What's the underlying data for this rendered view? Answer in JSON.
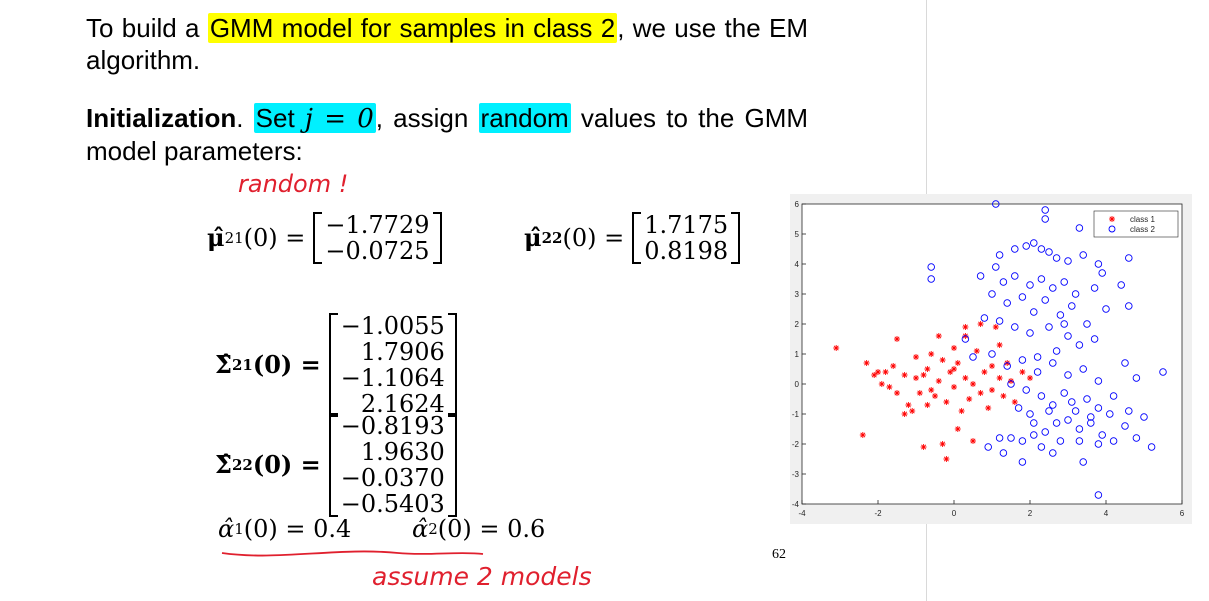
{
  "para1": {
    "before": "To build a ",
    "highlight": "GMM model for samples in class 2",
    "after": ", we use the EM algorithm."
  },
  "para2": {
    "bold": "Initialization",
    "dot": ". ",
    "set_hl": "Set ",
    "set_math": "j = 0",
    "mid": ", assign ",
    "random_hl": "random",
    "after": " values to the GMM model parameters:"
  },
  "equations": {
    "mu21": {
      "label": "μ̂",
      "sub": "21",
      "arg": "(0) =",
      "values": [
        "−1.7729",
        "−0.0725"
      ]
    },
    "mu22": {
      "label": "μ̂",
      "sub": "22",
      "arg": "(0) =",
      "values": [
        "1.7175",
        "0.8198"
      ]
    },
    "sigma21": {
      "label": "Σ̂",
      "sub": "21",
      "arg": "(0) =",
      "rows": [
        [
          "−1.0055",
          "1.7906"
        ],
        [
          "−1.1064",
          "2.1624"
        ]
      ]
    },
    "sigma22": {
      "label": "Σ̂",
      "sub": "22",
      "arg": "(0) =",
      "rows": [
        [
          "−0.8193",
          "1.9630"
        ],
        [
          "−0.0370",
          "−0.5403"
        ]
      ]
    },
    "alpha1": {
      "label": "α̂",
      "sub": "1",
      "arg": "(0) = 0.4"
    },
    "alpha2": {
      "label": "α̂",
      "sub": "2",
      "arg": "(0) = 0.6"
    }
  },
  "handwriting": {
    "random_note": "random !",
    "assume_note": "assume 2 models"
  },
  "page_number": "62",
  "colors": {
    "highlight_yellow": "#ffff00",
    "highlight_cyan": "#00f0ff",
    "handwriting_red": "#e0202e",
    "class1": "#ff0000",
    "class2": "#0000ff"
  },
  "chart_data": {
    "type": "scatter",
    "xlim": [
      -4,
      6
    ],
    "ylim": [
      -4,
      6
    ],
    "xticks": [
      -4,
      -2,
      0,
      2,
      4,
      6
    ],
    "yticks": [
      -4,
      -3,
      -2,
      -1,
      0,
      1,
      2,
      3,
      4,
      5,
      6
    ],
    "grid": false,
    "legend_position": "top-right",
    "series": [
      {
        "name": "class 1",
        "marker": "*",
        "color": "#ff0000",
        "points": [
          [
            -3.1,
            1.2
          ],
          [
            -2.4,
            -1.7
          ],
          [
            -2.3,
            0.7
          ],
          [
            -2.0,
            0.4
          ],
          [
            -2.1,
            0.3
          ],
          [
            -1.9,
            0
          ],
          [
            -1.8,
            0.4
          ],
          [
            -1.7,
            -0.1
          ],
          [
            -1.6,
            0.6
          ],
          [
            -1.5,
            1.5
          ],
          [
            -1.5,
            -0.3
          ],
          [
            -1.3,
            -1.0
          ],
          [
            -1.2,
            -0.7
          ],
          [
            -1.1,
            -0.9
          ],
          [
            -1.0,
            0.2
          ],
          [
            -1.0,
            0.9
          ],
          [
            -0.9,
            -0.3
          ],
          [
            -0.8,
            0.3
          ],
          [
            -0.7,
            -0.7
          ],
          [
            -0.7,
            0.5
          ],
          [
            -0.6,
            1.0
          ],
          [
            -0.5,
            -0.4
          ],
          [
            -0.4,
            0.1
          ],
          [
            -0.3,
            -2.0
          ],
          [
            -0.3,
            0.8
          ],
          [
            -0.2,
            -0.6
          ],
          [
            -0.1,
            0.4
          ],
          [
            0,
            -0.1
          ],
          [
            0,
            1.2
          ],
          [
            0.1,
            -1.5
          ],
          [
            0.1,
            0.7
          ],
          [
            0.2,
            -0.9
          ],
          [
            0.3,
            0.2
          ],
          [
            0.3,
            1.6
          ],
          [
            0.4,
            -0.5
          ],
          [
            0.5,
            0
          ],
          [
            0.6,
            1.1
          ],
          [
            0.7,
            -0.3
          ],
          [
            0.8,
            0.4
          ],
          [
            0.9,
            -0.8
          ],
          [
            1.0,
            0.6
          ],
          [
            1.0,
            -0.2
          ],
          [
            1.1,
            1.9
          ],
          [
            1.2,
            0.2
          ],
          [
            1.3,
            -0.4
          ],
          [
            1.4,
            0.7
          ],
          [
            1.5,
            0.1
          ],
          [
            1.6,
            -0.6
          ],
          [
            1.8,
            0.4
          ],
          [
            2.0,
            0.2
          ],
          [
            -0.2,
            -2.5
          ],
          [
            0.5,
            -1.9
          ],
          [
            -0.8,
            -2.1
          ],
          [
            0.3,
            1.9
          ],
          [
            0.7,
            2.0
          ],
          [
            -0.4,
            1.6
          ],
          [
            0.0,
            0.5
          ],
          [
            -0.6,
            -0.2
          ],
          [
            -1.3,
            0.3
          ],
          [
            1.2,
            1.3
          ]
        ]
      },
      {
        "name": "class 2",
        "marker": "o",
        "color": "#0000ff",
        "points": [
          [
            1.1,
            6.0
          ],
          [
            2.4,
            5.8
          ],
          [
            2.4,
            5.5
          ],
          [
            3.3,
            5.2
          ],
          [
            4.2,
            5.2
          ],
          [
            1.6,
            4.5
          ],
          [
            1.9,
            4.6
          ],
          [
            2.1,
            4.7
          ],
          [
            2.3,
            4.5
          ],
          [
            1.2,
            4.3
          ],
          [
            2.5,
            4.4
          ],
          [
            3.0,
            4.1
          ],
          [
            3.4,
            4.3
          ],
          [
            3.8,
            4.0
          ],
          [
            4.6,
            4.2
          ],
          [
            -0.6,
            3.9
          ],
          [
            -0.6,
            3.5
          ],
          [
            0.7,
            3.6
          ],
          [
            1.3,
            3.4
          ],
          [
            1.6,
            3.6
          ],
          [
            2.0,
            3.3
          ],
          [
            2.3,
            3.5
          ],
          [
            2.6,
            3.2
          ],
          [
            2.9,
            3.4
          ],
          [
            3.2,
            3.0
          ],
          [
            3.7,
            3.2
          ],
          [
            4.4,
            3.3
          ],
          [
            1.0,
            3.0
          ],
          [
            1.4,
            2.7
          ],
          [
            1.8,
            2.9
          ],
          [
            2.1,
            2.4
          ],
          [
            2.4,
            2.8
          ],
          [
            2.8,
            2.3
          ],
          [
            3.1,
            2.6
          ],
          [
            3.5,
            2.0
          ],
          [
            4.0,
            2.5
          ],
          [
            4.6,
            2.6
          ],
          [
            0.8,
            2.2
          ],
          [
            1.2,
            2.1
          ],
          [
            1.6,
            1.9
          ],
          [
            2.0,
            1.7
          ],
          [
            2.5,
            1.9
          ],
          [
            3.0,
            1.6
          ],
          [
            3.3,
            1.3
          ],
          [
            3.7,
            1.5
          ],
          [
            0.3,
            1.5
          ],
          [
            0.5,
            0.9
          ],
          [
            1.0,
            1.0
          ],
          [
            1.4,
            0.6
          ],
          [
            1.8,
            0.8
          ],
          [
            2.2,
            0.4
          ],
          [
            2.6,
            0.7
          ],
          [
            3.0,
            0.3
          ],
          [
            3.4,
            0.5
          ],
          [
            3.8,
            0.1
          ],
          [
            4.5,
            0.7
          ],
          [
            4.8,
            0.2
          ],
          [
            5.5,
            0.4
          ],
          [
            1.5,
            0
          ],
          [
            1.9,
            -0.2
          ],
          [
            2.3,
            -0.4
          ],
          [
            2.6,
            -0.7
          ],
          [
            2.9,
            -0.3
          ],
          [
            3.2,
            -0.9
          ],
          [
            3.5,
            -0.5
          ],
          [
            3.8,
            -0.8
          ],
          [
            4.2,
            -0.4
          ],
          [
            4.6,
            -0.9
          ],
          [
            5.0,
            -1.1
          ],
          [
            1.2,
            -1.8
          ],
          [
            1.5,
            -1.8
          ],
          [
            1.8,
            -1.9
          ],
          [
            2.1,
            -1.7
          ],
          [
            2.4,
            -1.6
          ],
          [
            2.7,
            -1.3
          ],
          [
            3.0,
            -1.2
          ],
          [
            3.3,
            -1.5
          ],
          [
            3.6,
            -1.1
          ],
          [
            3.9,
            -1.7
          ],
          [
            4.2,
            -1.9
          ],
          [
            4.5,
            -1.4
          ],
          [
            4.8,
            -1.8
          ],
          [
            5.2,
            -2.1
          ],
          [
            1.3,
            -2.3
          ],
          [
            1.8,
            -2.6
          ],
          [
            2.3,
            -2.1
          ],
          [
            2.8,
            -1.9
          ],
          [
            3.4,
            -2.6
          ],
          [
            3.8,
            -2.0
          ],
          [
            3.8,
            -3.7
          ],
          [
            0.9,
            -2.1
          ],
          [
            2.0,
            -1.0
          ],
          [
            2.5,
            -0.9
          ],
          [
            3.1,
            -0.6
          ],
          [
            3.6,
            -1.3
          ],
          [
            4.1,
            -1.0
          ],
          [
            2.2,
            0.9
          ],
          [
            2.7,
            1.1
          ],
          [
            1.7,
            -0.8
          ],
          [
            2.1,
            -1.3
          ],
          [
            3.3,
            -1.9
          ],
          [
            2.6,
            -2.3
          ],
          [
            2.9,
            2.0
          ],
          [
            1.1,
            3.9
          ],
          [
            3.9,
            3.7
          ],
          [
            2.7,
            4.2
          ]
        ]
      }
    ]
  }
}
